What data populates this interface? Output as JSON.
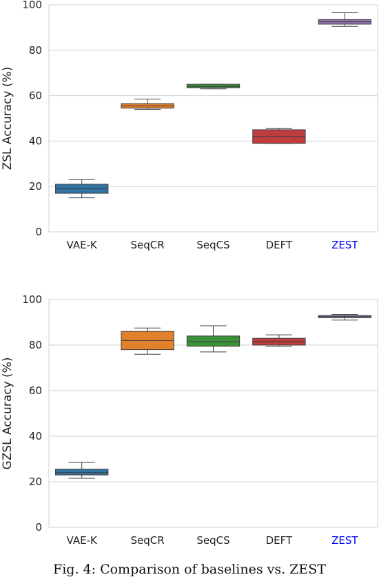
{
  "chart_data": [
    {
      "type": "box",
      "ylabel": "ZSL Accuracy (%)",
      "ylim": [
        0,
        100
      ],
      "yticks": [
        0,
        20,
        40,
        60,
        80,
        100
      ],
      "grid": true,
      "categories": [
        "VAE-K",
        "SeqCR",
        "SeqCS",
        "DEFT",
        "ZEST"
      ],
      "category_colors": [
        "#222222",
        "#222222",
        "#222222",
        "#222222",
        "#0000ee"
      ],
      "box_colors": [
        "#3274a1",
        "#e1812c",
        "#3a923a",
        "#c03d3e",
        "#9372b2"
      ],
      "boxes": [
        {
          "min": 15,
          "q1": 17,
          "median": 19,
          "q3": 21,
          "max": 23
        },
        {
          "min": 54,
          "q1": 54.5,
          "median": 55.5,
          "q3": 56.5,
          "max": 58.5
        },
        {
          "min": 63,
          "q1": 63.5,
          "median": 64,
          "q3": 65,
          "max": 65
        },
        {
          "min": 39,
          "q1": 39,
          "median": 42,
          "q3": 45,
          "max": 45.5
        },
        {
          "min": 90.5,
          "q1": 91.5,
          "median": 92.5,
          "q3": 93.5,
          "max": 96.5
        }
      ]
    },
    {
      "type": "box",
      "ylabel": "GZSL Accuracy (%)",
      "ylim": [
        0,
        100
      ],
      "yticks": [
        0,
        20,
        40,
        60,
        80,
        100
      ],
      "grid": true,
      "categories": [
        "VAE-K",
        "SeqCR",
        "SeqCS",
        "DEFT",
        "ZEST"
      ],
      "category_colors": [
        "#222222",
        "#222222",
        "#222222",
        "#222222",
        "#0000ee"
      ],
      "box_colors": [
        "#3274a1",
        "#e1812c",
        "#3a923a",
        "#c03d3e",
        "#9372b2"
      ],
      "boxes": [
        {
          "min": 21.5,
          "q1": 23,
          "median": 24,
          "q3": 25.5,
          "max": 28.5
        },
        {
          "min": 76,
          "q1": 78,
          "median": 82,
          "q3": 86,
          "max": 87.5
        },
        {
          "min": 77,
          "q1": 79.5,
          "median": 81.5,
          "q3": 84,
          "max": 88.5
        },
        {
          "min": 79.5,
          "q1": 80,
          "median": 81.5,
          "q3": 83,
          "max": 84.5
        },
        {
          "min": 91,
          "q1": 92,
          "median": 92.5,
          "q3": 93,
          "max": 93.5
        }
      ]
    }
  ],
  "caption": "Fig. 4: Comparison of baselines vs. ZEST"
}
